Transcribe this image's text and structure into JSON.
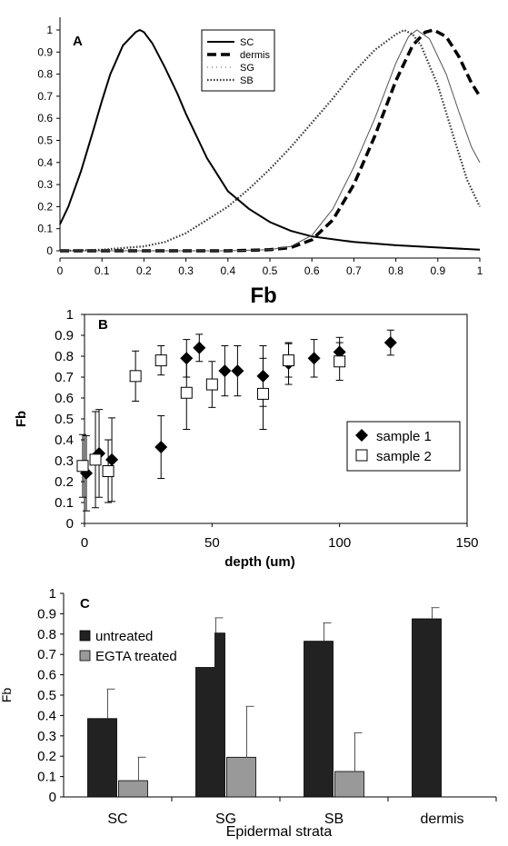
{
  "chart_data": [
    {
      "panel": "A",
      "type": "line",
      "xlabel": "Fb",
      "ylabel": "",
      "xlim": [
        0,
        1
      ],
      "ylim": [
        0,
        1
      ],
      "xticks": [
        "0",
        "0.1",
        "0.2",
        "0.3",
        "0.4",
        "0.5",
        "0.6",
        "0.7",
        "0.8",
        "0.9",
        "1"
      ],
      "yticks": [
        "0",
        "0.1",
        "0.2",
        "0.3",
        "0.4",
        "0.5",
        "0.6",
        "0.7",
        "0.8",
        "0.9",
        "1"
      ],
      "legend_position": "top-center",
      "series": [
        {
          "name": "SC",
          "style": "solid",
          "x": [
            0,
            0.02,
            0.05,
            0.08,
            0.1,
            0.12,
            0.15,
            0.18,
            0.19,
            0.2,
            0.22,
            0.25,
            0.28,
            0.3,
            0.33,
            0.35,
            0.38,
            0.4,
            0.45,
            0.5,
            0.55,
            0.6,
            0.7,
            0.8,
            0.9,
            1.0
          ],
          "y": [
            0.12,
            0.2,
            0.36,
            0.55,
            0.68,
            0.8,
            0.93,
            0.99,
            1.0,
            0.99,
            0.94,
            0.83,
            0.71,
            0.62,
            0.5,
            0.42,
            0.33,
            0.27,
            0.19,
            0.13,
            0.09,
            0.065,
            0.04,
            0.025,
            0.015,
            0.005
          ]
        },
        {
          "name": "dermis",
          "style": "thick-dashed",
          "x": [
            0,
            0.4,
            0.5,
            0.55,
            0.6,
            0.65,
            0.7,
            0.75,
            0.8,
            0.84,
            0.87,
            0.89,
            0.92,
            0.95,
            0.98,
            1.0
          ],
          "y": [
            0,
            0,
            0.005,
            0.015,
            0.05,
            0.14,
            0.3,
            0.52,
            0.77,
            0.93,
            0.99,
            1.0,
            0.97,
            0.88,
            0.76,
            0.7
          ]
        },
        {
          "name": "SG",
          "style": "thin-solid",
          "x": [
            0,
            0.4,
            0.5,
            0.55,
            0.6,
            0.65,
            0.7,
            0.75,
            0.8,
            0.83,
            0.85,
            0.88,
            0.92,
            0.95,
            0.98,
            1.0
          ],
          "y": [
            0,
            0,
            0.005,
            0.02,
            0.07,
            0.19,
            0.38,
            0.6,
            0.85,
            0.97,
            1.0,
            0.96,
            0.8,
            0.63,
            0.47,
            0.4
          ]
        },
        {
          "name": "SB",
          "style": "dotted",
          "x": [
            0,
            0.1,
            0.2,
            0.25,
            0.3,
            0.35,
            0.4,
            0.45,
            0.5,
            0.55,
            0.6,
            0.65,
            0.7,
            0.75,
            0.8,
            0.82,
            0.84,
            0.86,
            0.9,
            0.94,
            0.97,
            1.0
          ],
          "y": [
            0,
            0.005,
            0.02,
            0.04,
            0.08,
            0.14,
            0.2,
            0.28,
            0.37,
            0.47,
            0.58,
            0.69,
            0.81,
            0.91,
            0.98,
            1.0,
            0.98,
            0.93,
            0.75,
            0.5,
            0.32,
            0.2
          ]
        }
      ]
    },
    {
      "panel": "B",
      "type": "scatter",
      "xlabel": "depth (um)",
      "ylabel": "Fb",
      "xlim": [
        0,
        150
      ],
      "ylim": [
        0,
        1
      ],
      "xticks": [
        "0",
        "50",
        "100",
        "150"
      ],
      "yticks": [
        "0",
        "0.1",
        "0.2",
        "0.3",
        "0.4",
        "0.5",
        "0.6",
        "0.7",
        "0.8",
        "0.9",
        "1"
      ],
      "legend_position": "center-right",
      "series": [
        {
          "name": "sample 1",
          "marker": "filled-diamond",
          "x": [
            0,
            5,
            10,
            30,
            40,
            45,
            55,
            60,
            70,
            80,
            90,
            100,
            120
          ],
          "y": [
            0.24,
            0.335,
            0.305,
            0.365,
            0.79,
            0.84,
            0.73,
            0.73,
            0.705,
            0.765,
            0.79,
            0.82,
            0.865
          ],
          "error": [
            0.18,
            0.21,
            0.2,
            0.15,
            0.09,
            0.065,
            0.12,
            0.12,
            0.145,
            0.1,
            0.09,
            0.07,
            0.06
          ]
        },
        {
          "name": "sample 2",
          "marker": "open-square",
          "x": [
            0,
            5,
            10,
            20,
            30,
            40,
            50,
            70,
            80,
            100
          ],
          "y": [
            0.275,
            0.305,
            0.25,
            0.705,
            0.78,
            0.625,
            0.665,
            0.62,
            0.78,
            0.775
          ],
          "error": [
            0.15,
            0.23,
            0.15,
            0.12,
            0.07,
            0.175,
            0.11,
            0.17,
            0.08,
            0.09
          ]
        }
      ]
    },
    {
      "panel": "C",
      "type": "bar",
      "xlabel": "Epidermal strata",
      "ylabel": "Fb",
      "ylim": [
        0,
        1
      ],
      "categories": [
        "SC",
        "SG",
        "SB",
        "dermis"
      ],
      "yticks": [
        "0",
        "0.1",
        "0.2",
        "0.3",
        "0.4",
        "0.5",
        "0.6",
        "0.7",
        "0.8",
        "0.9",
        "1"
      ],
      "legend_position": "top-left",
      "series": [
        {
          "name": "untreated",
          "color": "#222222",
          "values": [
            0.385,
            0.805,
            0.765,
            0.875
          ],
          "error": [
            0.145,
            0.075,
            0.09,
            0.055
          ]
        },
        {
          "name": "EGTA treated",
          "color": "#999999",
          "values": [
            0.08,
            0.195,
            0.125,
            null
          ],
          "error": [
            0.115,
            0.25,
            0.19,
            null
          ]
        }
      ]
    }
  ]
}
